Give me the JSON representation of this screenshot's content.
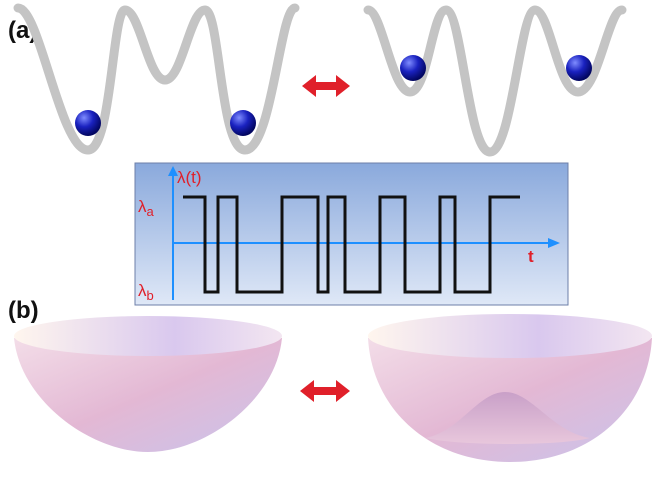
{
  "panel_a": {
    "label": "(a)"
  },
  "inset": {
    "y_axis": {
      "symbol": "λ(t)"
    },
    "upper_level": {
      "symbol": "λ",
      "subscript": "a"
    },
    "lower_level": {
      "symbol": "λ",
      "subscript": "b"
    },
    "x_axis": {
      "symbol": "t"
    }
  },
  "panel_b": {
    "label": "(b)"
  }
}
